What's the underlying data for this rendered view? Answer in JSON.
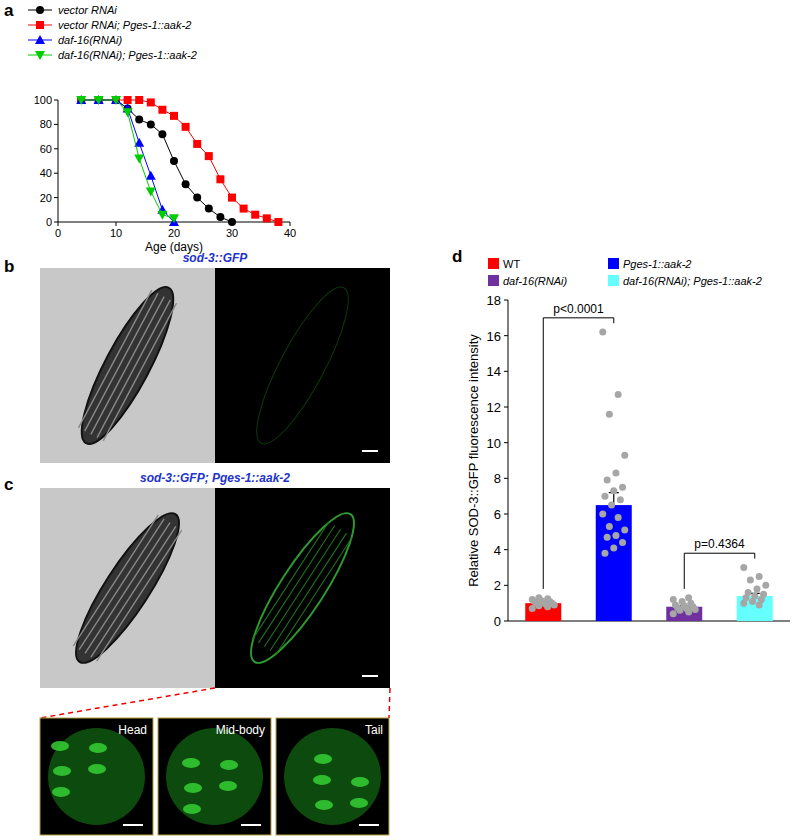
{
  "panel_labels": [
    "a",
    "b",
    "c",
    "d"
  ],
  "chart_data": [
    {
      "type": "line",
      "x_label": "Age (days)",
      "x": [
        4,
        7,
        10,
        12,
        14,
        16,
        18,
        20,
        22,
        24,
        26,
        28,
        30,
        32,
        34,
        36,
        38
      ],
      "xlim": [
        0,
        40
      ],
      "xticks": [
        0,
        10,
        20,
        30,
        40
      ],
      "ylim": [
        0,
        100
      ],
      "yticks": [
        0,
        20,
        40,
        60,
        80,
        100
      ],
      "legend": "top",
      "series": [
        {
          "name": "vector RNAi",
          "color": "#000000",
          "marker": "circle",
          "values": [
            100,
            100,
            100,
            93,
            84,
            80,
            72,
            50,
            31,
            20,
            11,
            4,
            0,
            null,
            null,
            null,
            null
          ]
        },
        {
          "name": "vector RNAi; Pges-1::aak-2",
          "color": "#ff0000",
          "marker": "square",
          "values": [
            100,
            100,
            100,
            100,
            100,
            98,
            92,
            87,
            78,
            64,
            54,
            35,
            20,
            11,
            6,
            3,
            0
          ]
        },
        {
          "name": "daf-16(RNAi)",
          "color": "#0000ff",
          "marker": "triangle",
          "values": [
            100,
            100,
            100,
            93,
            65,
            38,
            10,
            0,
            null,
            null,
            null,
            null,
            null,
            null,
            null,
            null,
            null
          ]
        },
        {
          "name": "daf-16(RNAi); Pges-1::aak-2",
          "color": "#00cc00",
          "marker": "triangle-down",
          "values": [
            100,
            100,
            100,
            90,
            52,
            25,
            6,
            3,
            null,
            null,
            null,
            null,
            null,
            null,
            null,
            null,
            null
          ]
        }
      ]
    },
    {
      "type": "bar",
      "y_label": "Relative SOD-3::GFP  fluorescence intensity",
      "categories": [
        "WT",
        "Pges-1::aak-2",
        "daf-16(RNAi)",
        "daf-16(RNAi); Pges-1::aak-2"
      ],
      "colors": [
        "#ff0000",
        "#0000ff",
        "#7030a0",
        "#66ffff"
      ],
      "values": [
        1.0,
        6.5,
        0.8,
        1.4
      ],
      "errors": [
        0.05,
        0.7,
        0.05,
        0.15
      ],
      "points": [
        [
          0.7,
          0.8,
          0.85,
          0.9,
          0.95,
          1.0,
          1.0,
          1.05,
          1.1,
          1.1,
          1.15,
          1.2,
          1.25,
          1.3
        ],
        [
          16.2,
          12.7,
          11.6,
          9.3,
          8.3,
          7.9,
          7.5,
          7.3,
          7.0,
          6.8,
          6.5,
          6.0,
          5.8,
          5.3,
          5.1,
          4.8,
          4.7,
          4.4,
          4.1,
          3.8
        ],
        [
          0.4,
          0.5,
          0.6,
          0.65,
          0.7,
          0.75,
          0.8,
          0.85,
          0.9,
          1.0,
          1.1,
          1.2,
          1.3
        ],
        [
          3.0,
          2.5,
          2.3,
          2.0,
          1.8,
          1.6,
          1.5,
          1.4,
          1.3,
          1.2,
          1.1,
          1.0,
          0.9
        ]
      ],
      "comparisons": [
        {
          "label": "p<0.0001",
          "groups": [
            "WT",
            "Pges-1::aak-2"
          ]
        },
        {
          "label": "p=0.4364",
          "groups": [
            "daf-16(RNAi)",
            "daf-16(RNAi); Pges-1::aak-2"
          ]
        }
      ],
      "ylim": [
        0,
        18
      ],
      "yticks": [
        0,
        2,
        4,
        6,
        8,
        10,
        12,
        14,
        16,
        18
      ],
      "legend": "top",
      "tick_labels": "y"
    }
  ],
  "images": [
    {
      "title": "sod-3::GFP"
    },
    {
      "title": "sod-3::GFP; Pges-1::aak-2",
      "insets": [
        "Head",
        "Mid-body",
        "Tail"
      ]
    }
  ]
}
